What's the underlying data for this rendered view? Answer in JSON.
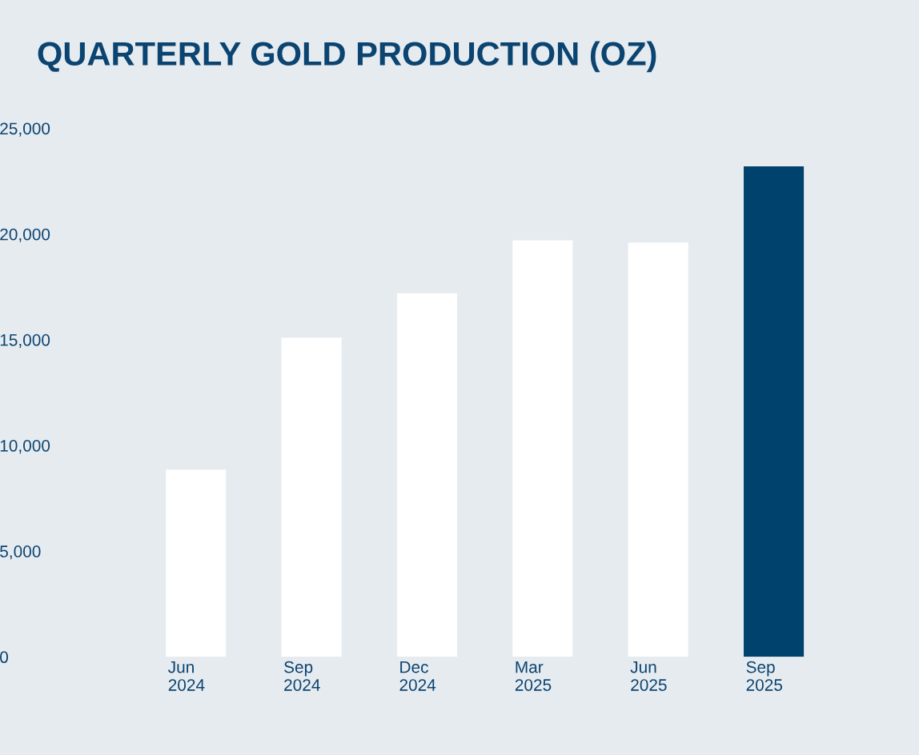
{
  "chart_data": {
    "type": "bar",
    "title": "QUARTERLY GOLD PRODUCTION (OZ)",
    "categories": [
      "Jun\n2024",
      "Sep\n2024",
      "Dec\n2024",
      "Mar\n2025",
      "Jun\n2025",
      "Sep\n2025"
    ],
    "values": [
      8850,
      15100,
      17200,
      19700,
      19600,
      23200
    ],
    "colors": [
      "#ffffff",
      "#ffffff",
      "#ffffff",
      "#ffffff",
      "#ffffff",
      "#00426e"
    ],
    "ylim": [
      0,
      25000
    ],
    "yticks": [
      {
        "value": 0,
        "label": "0"
      },
      {
        "value": 5000,
        "label": "5,000"
      },
      {
        "value": 10000,
        "label": "10,000"
      },
      {
        "value": 15000,
        "label": "15,000"
      },
      {
        "value": 20000,
        "label": "20,000"
      },
      {
        "value": 25000,
        "label": "25,000"
      }
    ],
    "grid": false
  }
}
